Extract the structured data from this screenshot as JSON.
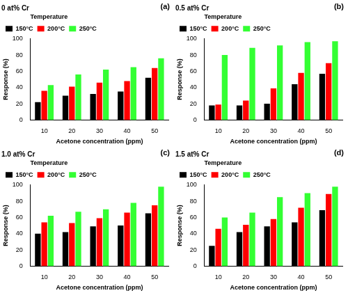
{
  "chart_data": [
    {
      "type": "bar",
      "title": "0 at% Cr",
      "annotation": "(a)",
      "legend_title": "Temperature",
      "legend": "top",
      "x_label": "Acetone concentration (ppm)",
      "y_label": "Response (%)",
      "categories": [
        "10",
        "20",
        "30",
        "40",
        "50"
      ],
      "series": [
        {
          "name": "150°C",
          "color": "#000000",
          "values": [
            22,
            30,
            32,
            35,
            52
          ]
        },
        {
          "name": "200°C",
          "color": "#ff0000",
          "values": [
            36,
            41,
            46,
            48,
            64
          ]
        },
        {
          "name": "250°C",
          "color": "#33ff33",
          "values": [
            43,
            56,
            62,
            65,
            76
          ]
        }
      ],
      "ylim": [
        0,
        100
      ],
      "yticks": [
        0,
        20,
        40,
        60,
        80,
        100
      ],
      "grid": false
    },
    {
      "type": "bar",
      "title": "0.5 at% Cr",
      "annotation": "(b)",
      "legend_title": "Temperature",
      "legend": "top",
      "x_label": "Acetone concentration (ppm)",
      "y_label": "Response (%)",
      "categories": [
        "10",
        "20",
        "30",
        "40",
        "50"
      ],
      "series": [
        {
          "name": "150°C",
          "color": "#000000",
          "values": [
            18,
            18,
            20,
            44,
            57
          ]
        },
        {
          "name": "200°C",
          "color": "#ff0000",
          "values": [
            19,
            24,
            39,
            58,
            70
          ]
        },
        {
          "name": "250°C",
          "color": "#33ff33",
          "values": [
            80,
            89,
            92,
            96,
            97
          ]
        }
      ],
      "ylim": [
        0,
        100
      ],
      "yticks": [
        0,
        20,
        40,
        60,
        80,
        100
      ],
      "grid": false
    },
    {
      "type": "bar",
      "title": "1.0 at% Cr",
      "annotation": "(c)",
      "legend_title": "Temperature",
      "legend": "top",
      "x_label": "Acetone concentration (ppm)",
      "y_label": "Response (%)",
      "categories": [
        "10",
        "20",
        "30",
        "40",
        "50"
      ],
      "series": [
        {
          "name": "150°C",
          "color": "#000000",
          "values": [
            40,
            42,
            49,
            50,
            65
          ]
        },
        {
          "name": "200°C",
          "color": "#ff0000",
          "values": [
            54,
            53,
            59,
            66,
            75
          ]
        },
        {
          "name": "250°C",
          "color": "#33ff33",
          "values": [
            62,
            67,
            70,
            78,
            98
          ]
        }
      ],
      "ylim": [
        0,
        100
      ],
      "yticks": [
        0,
        20,
        40,
        60,
        80,
        100
      ],
      "grid": false
    },
    {
      "type": "bar",
      "title": "1.5 at% Cr",
      "annotation": "(d)",
      "legend_title": "Temperature",
      "legend": "top",
      "x_label": "Acetone concentration (ppm)",
      "y_label": "Response (%)",
      "categories": [
        "10",
        "20",
        "30",
        "40",
        "50"
      ],
      "series": [
        {
          "name": "150°C",
          "color": "#000000",
          "values": [
            25,
            42,
            49,
            54,
            69
          ]
        },
        {
          "name": "200°C",
          "color": "#ff0000",
          "values": [
            46,
            51,
            58,
            72,
            89
          ]
        },
        {
          "name": "250°C",
          "color": "#33ff33",
          "values": [
            60,
            66,
            85,
            90,
            98
          ]
        }
      ],
      "ylim": [
        0,
        100
      ],
      "yticks": [
        0,
        20,
        40,
        60,
        80,
        100
      ],
      "grid": false
    }
  ]
}
